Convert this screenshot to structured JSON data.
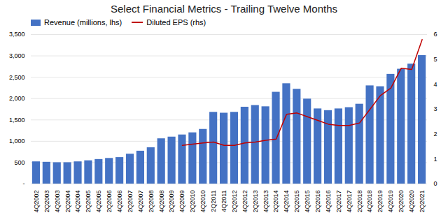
{
  "chart_data": {
    "type": "bar",
    "title": "Select Financial Metrics - Trailing Twelve Months",
    "categories": [
      "4Q2002",
      "2Q2003",
      "4Q2003",
      "2Q2004",
      "4Q2004",
      "2Q2005",
      "4Q2005",
      "2Q2006",
      "4Q2006",
      "2Q2007",
      "4Q2007",
      "2Q2008",
      "4Q2008",
      "2Q2009",
      "4Q2009",
      "2Q2010",
      "4Q2010",
      "2Q2011",
      "4Q2011",
      "2Q2012",
      "4Q2012",
      "2Q2013",
      "4Q2013",
      "2Q2014",
      "4Q2014",
      "2Q2015",
      "4Q2015",
      "2Q2016",
      "4Q2016",
      "2Q2017",
      "4Q2017",
      "2Q2018",
      "4Q2018",
      "2Q2019",
      "4Q2019",
      "2Q2020",
      "4Q2020",
      "2Q2021"
    ],
    "series": [
      {
        "name": "Revenue (millions, lhs)",
        "type": "bar",
        "color": "#4472C4",
        "values": [
          520,
          510,
          500,
          500,
          520,
          545,
          575,
          600,
          620,
          700,
          770,
          850,
          1060,
          1100,
          1150,
          1200,
          1280,
          1680,
          1660,
          1680,
          1800,
          1840,
          1810,
          2150,
          2350,
          2220,
          1990,
          1760,
          1720,
          1760,
          1790,
          1870,
          2300,
          2280,
          2570,
          2690,
          2810,
          3010
        ]
      },
      {
        "name": "Diluted EPS (rhs)",
        "type": "line",
        "axis": "y2",
        "color": "#C00000",
        "values": [
          null,
          null,
          null,
          null,
          null,
          null,
          null,
          null,
          null,
          null,
          null,
          null,
          null,
          null,
          1.55,
          1.6,
          1.65,
          1.68,
          1.55,
          1.55,
          1.65,
          1.68,
          1.75,
          1.8,
          2.8,
          2.85,
          2.7,
          2.55,
          2.4,
          2.35,
          2.35,
          2.45,
          3.0,
          3.55,
          3.85,
          4.65,
          4.6,
          5.8
        ]
      }
    ],
    "ylim": [
      0,
      3500
    ],
    "yticks": [
      {
        "value": 0,
        "label": "-"
      },
      500,
      {
        "value": 1000,
        "label": "1,000"
      },
      {
        "value": 1500,
        "label": "1,500"
      },
      {
        "value": 2000,
        "label": "2,000"
      },
      {
        "value": 2500,
        "label": "2,500"
      },
      {
        "value": 3000,
        "label": "3,000"
      },
      {
        "value": 3500,
        "label": "3,500"
      }
    ],
    "y2lim": [
      0,
      6
    ],
    "y2ticks": [
      0,
      1,
      2,
      3,
      4,
      5,
      6
    ],
    "grid": true,
    "legend": "upper left"
  }
}
